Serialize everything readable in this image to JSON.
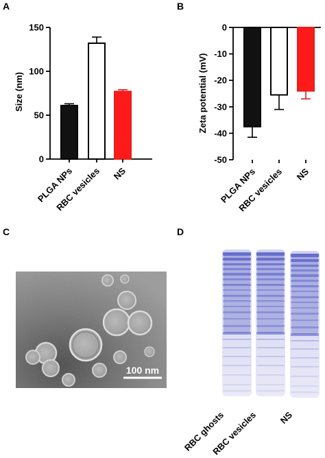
{
  "panels": {
    "a": "A",
    "b": "B",
    "c": "C",
    "d": "D"
  },
  "chart_data": [
    {
      "type": "bar",
      "panel": "A",
      "title": "",
      "xlabel": "",
      "ylabel": "Size (nm)",
      "categories": [
        "PLGA NPs",
        "RBC vesicles",
        "NS"
      ],
      "values": [
        61,
        132,
        77
      ],
      "errors": [
        2,
        7,
        2
      ],
      "bar_fill": [
        "#111111",
        "#ffffff",
        "#ff1a1a"
      ],
      "bar_stroke": [
        "#000000",
        "#000000",
        "#e02020"
      ],
      "error_color": [
        "#000000",
        "#000000",
        "#e02020"
      ],
      "ylim": [
        0,
        150
      ],
      "yticks": [
        0,
        50,
        100,
        150
      ],
      "ytick_labels": [
        "0",
        "50",
        "100",
        "150"
      ],
      "grid": false
    },
    {
      "type": "bar",
      "panel": "B",
      "title": "",
      "xlabel": "",
      "ylabel": "Zeta potential (mV)",
      "categories": [
        "PLGA NPs",
        "RBC vesicles",
        "NS"
      ],
      "values": [
        -37.5,
        -25.5,
        -24.0
      ],
      "errors": [
        4.0,
        5.5,
        3.0
      ],
      "bar_fill": [
        "#111111",
        "#ffffff",
        "#ff1a1a"
      ],
      "bar_stroke": [
        "#000000",
        "#000000",
        "#e02020"
      ],
      "error_color": [
        "#000000",
        "#000000",
        "#e02020"
      ],
      "ylim": [
        -50,
        0
      ],
      "yticks": [
        0,
        -10,
        -20,
        -30,
        -40,
        -50
      ],
      "ytick_labels": [
        "0",
        "-10",
        "-20",
        "-30",
        "-40",
        "-50"
      ],
      "grid": false
    }
  ],
  "tem": {
    "scale_bar_label": "100 nm"
  },
  "gel": {
    "lanes": [
      "RBC ghosts",
      "RBC vesicles",
      "NS"
    ],
    "band_color": "#5b63c6"
  }
}
